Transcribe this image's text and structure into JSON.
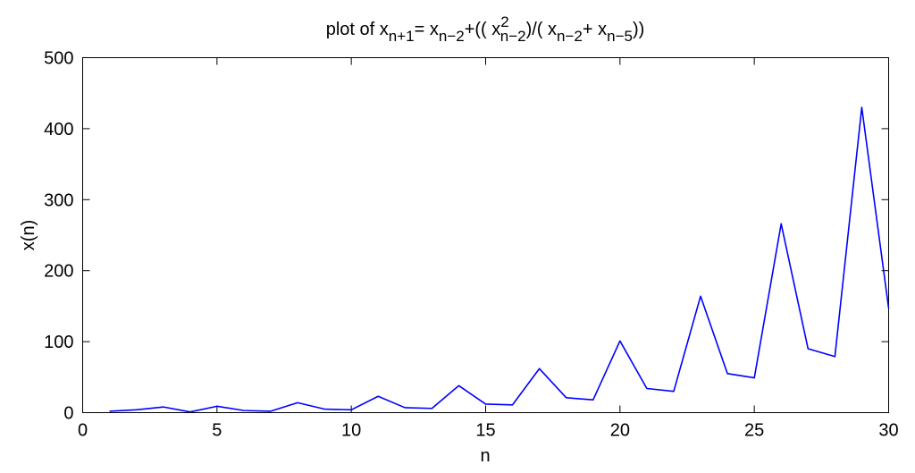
{
  "chart_data": {
    "type": "line",
    "title": {
      "segments": [
        {
          "text": "plot of x",
          "style": "normal"
        },
        {
          "text": "n+1",
          "style": "sub"
        },
        {
          "text": "= x",
          "style": "normal"
        },
        {
          "text": "n−2",
          "style": "sub"
        },
        {
          "text": "+(( x",
          "style": "normal"
        },
        {
          "text": "2",
          "style": "sup"
        },
        {
          "text": "n−2",
          "style": "sub"
        },
        {
          "text": ")/( x",
          "style": "normal"
        },
        {
          "text": "n−2",
          "style": "sub"
        },
        {
          "text": "+ x",
          "style": "normal"
        },
        {
          "text": "n−5",
          "style": "sub"
        },
        {
          "text": "))",
          "style": "normal"
        }
      ]
    },
    "xlabel": "n",
    "ylabel": "x(n)",
    "xlim": [
      0,
      30
    ],
    "ylim": [
      0,
      500
    ],
    "xticks": [
      0,
      5,
      10,
      15,
      20,
      25,
      30
    ],
    "yticks": [
      0,
      100,
      200,
      300,
      400,
      500
    ],
    "grid": false,
    "series": [
      {
        "color": "#0000ff",
        "x": [
          1,
          2,
          3,
          4,
          5,
          6,
          7,
          8,
          9,
          10,
          11,
          12,
          13,
          14,
          15,
          16,
          17,
          18,
          19,
          20,
          21,
          22,
          23,
          24,
          25,
          26,
          27,
          28,
          29,
          30
        ],
        "y": [
          2,
          4,
          8,
          1,
          9,
          3,
          2,
          14,
          5,
          4,
          23,
          7,
          6,
          38,
          12,
          11,
          62,
          21,
          18,
          101,
          34,
          30,
          164,
          55,
          49,
          266,
          90,
          79,
          430,
          147
        ]
      }
    ]
  }
}
